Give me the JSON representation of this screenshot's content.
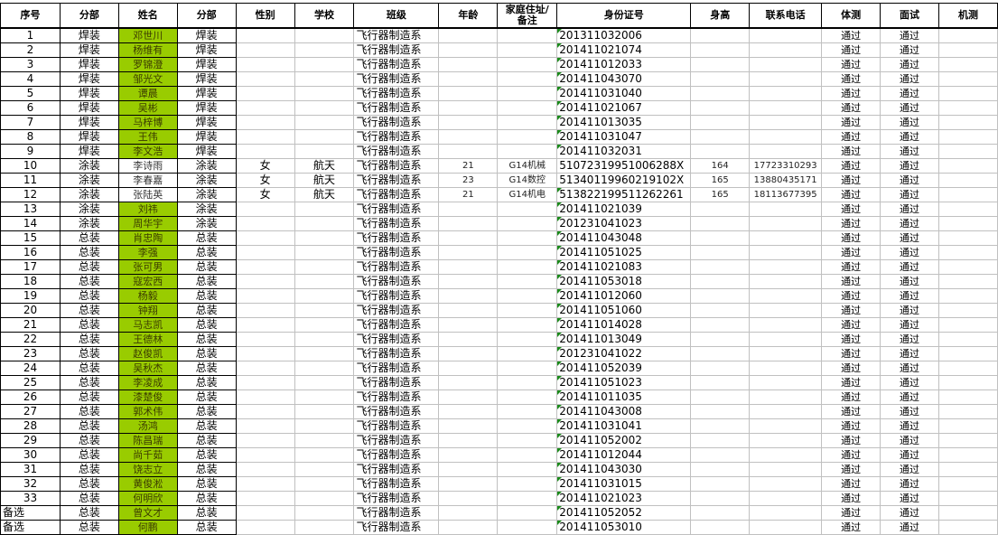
{
  "headers": [
    "序号",
    "分部",
    "姓名",
    "分部",
    "性别",
    "学校",
    "班级",
    "年龄",
    "家庭住址/\n备注",
    "身份证号",
    "身高",
    "联系电话",
    "体测",
    "面试",
    "机测"
  ],
  "colors": {
    "highlight": "#99cc00",
    "grid": "#c0c0c0",
    "border": "#000000",
    "error_indicator": "#1a8a1a"
  },
  "rows": [
    {
      "no": "1",
      "dept": "焊装",
      "name": "邓世川",
      "dept2": "焊装",
      "gender": "",
      "school": "",
      "class": "飞行器制造系",
      "age": "",
      "note": "",
      "id": "201311032006",
      "height": "",
      "phone": "",
      "pe": "通过",
      "interview": "通过",
      "machine": "",
      "hl": true,
      "tri": true
    },
    {
      "no": "2",
      "dept": "焊装",
      "name": "杨维有",
      "dept2": "焊装",
      "gender": "",
      "school": "",
      "class": "飞行器制造系",
      "age": "",
      "note": "",
      "id": "201411021074",
      "height": "",
      "phone": "",
      "pe": "通过",
      "interview": "通过",
      "machine": "",
      "hl": true,
      "tri": true
    },
    {
      "no": "3",
      "dept": "焊装",
      "name": "罗锦澄",
      "dept2": "焊装",
      "gender": "",
      "school": "",
      "class": "飞行器制造系",
      "age": "",
      "note": "",
      "id": "201411012033",
      "height": "",
      "phone": "",
      "pe": "通过",
      "interview": "通过",
      "machine": "",
      "hl": true,
      "tri": true
    },
    {
      "no": "4",
      "dept": "焊装",
      "name": "邹光文",
      "dept2": "焊装",
      "gender": "",
      "school": "",
      "class": "飞行器制造系",
      "age": "",
      "note": "",
      "id": "201411043070",
      "height": "",
      "phone": "",
      "pe": "通过",
      "interview": "通过",
      "machine": "",
      "hl": true,
      "tri": true
    },
    {
      "no": "5",
      "dept": "焊装",
      "name": "谭晨",
      "dept2": "焊装",
      "gender": "",
      "school": "",
      "class": "飞行器制造系",
      "age": "",
      "note": "",
      "id": "201411031040",
      "height": "",
      "phone": "",
      "pe": "通过",
      "interview": "通过",
      "machine": "",
      "hl": true,
      "tri": true
    },
    {
      "no": "6",
      "dept": "焊装",
      "name": "吴彬",
      "dept2": "焊装",
      "gender": "",
      "school": "",
      "class": "飞行器制造系",
      "age": "",
      "note": "",
      "id": "201411021067",
      "height": "",
      "phone": "",
      "pe": "通过",
      "interview": "通过",
      "machine": "",
      "hl": true,
      "tri": true
    },
    {
      "no": "7",
      "dept": "焊装",
      "name": "马梓博",
      "dept2": "焊装",
      "gender": "",
      "school": "",
      "class": "飞行器制造系",
      "age": "",
      "note": "",
      "id": "201411013035",
      "height": "",
      "phone": "",
      "pe": "通过",
      "interview": "通过",
      "machine": "",
      "hl": true,
      "tri": true
    },
    {
      "no": "8",
      "dept": "焊装",
      "name": "王伟",
      "dept2": "焊装",
      "gender": "",
      "school": "",
      "class": "飞行器制造系",
      "age": "",
      "note": "",
      "id": "201411031047",
      "height": "",
      "phone": "",
      "pe": "通过",
      "interview": "通过",
      "machine": "",
      "hl": true,
      "tri": true
    },
    {
      "no": "9",
      "dept": "焊装",
      "name": "李文浩",
      "dept2": "焊装",
      "gender": "",
      "school": "",
      "class": "飞行器制造系",
      "age": "",
      "note": "",
      "id": "201411032031",
      "height": "",
      "phone": "",
      "pe": "通过",
      "interview": "通过",
      "machine": "",
      "hl": true,
      "tri": true
    },
    {
      "no": "10",
      "dept": "涂装",
      "name": "李诗雨",
      "dept2": "涂装",
      "gender": "女",
      "school": "航天",
      "class": "飞行器制造系",
      "age": "21",
      "note": "G14机械",
      "id": "51072319951006288X",
      "height": "164",
      "phone": "17723310293",
      "pe": "通过",
      "interview": "通过",
      "machine": "",
      "hl": false,
      "tri": false
    },
    {
      "no": "11",
      "dept": "涂装",
      "name": "李春嘉",
      "dept2": "涂装",
      "gender": "女",
      "school": "航天",
      "class": "飞行器制造系",
      "age": "23",
      "note": "G14数控",
      "id": "51340119960219102X",
      "height": "165",
      "phone": "13880435171",
      "pe": "通过",
      "interview": "通过",
      "machine": "",
      "hl": false,
      "tri": false
    },
    {
      "no": "12",
      "dept": "涂装",
      "name": "张陆英",
      "dept2": "涂装",
      "gender": "女",
      "school": "航天",
      "class": "飞行器制造系",
      "age": "21",
      "note": "G14机电",
      "id": "513822199511262261",
      "height": "165",
      "phone": "18113677395",
      "pe": "通过",
      "interview": "通过",
      "machine": "",
      "hl": false,
      "tri": true
    },
    {
      "no": "13",
      "dept": "涂装",
      "name": "刘祎",
      "dept2": "涂装",
      "gender": "",
      "school": "",
      "class": "飞行器制造系",
      "age": "",
      "note": "",
      "id": "201411021039",
      "height": "",
      "phone": "",
      "pe": "通过",
      "interview": "通过",
      "machine": "",
      "hl": true,
      "tri": true
    },
    {
      "no": "14",
      "dept": "涂装",
      "name": "周华宇",
      "dept2": "涂装",
      "gender": "",
      "school": "",
      "class": "飞行器制造系",
      "age": "",
      "note": "",
      "id": "201231041023",
      "height": "",
      "phone": "",
      "pe": "通过",
      "interview": "通过",
      "machine": "",
      "hl": true,
      "tri": true
    },
    {
      "no": "15",
      "dept": "总装",
      "name": "肖忠陶",
      "dept2": "总装",
      "gender": "",
      "school": "",
      "class": "飞行器制造系",
      "age": "",
      "note": "",
      "id": "201411043048",
      "height": "",
      "phone": "",
      "pe": "通过",
      "interview": "通过",
      "machine": "",
      "hl": true,
      "tri": true
    },
    {
      "no": "16",
      "dept": "总装",
      "name": "李强",
      "dept2": "总装",
      "gender": "",
      "school": "",
      "class": "飞行器制造系",
      "age": "",
      "note": "",
      "id": "201411051025",
      "height": "",
      "phone": "",
      "pe": "通过",
      "interview": "通过",
      "machine": "",
      "hl": true,
      "tri": true
    },
    {
      "no": "17",
      "dept": "总装",
      "name": "张可男",
      "dept2": "总装",
      "gender": "",
      "school": "",
      "class": "飞行器制造系",
      "age": "",
      "note": "",
      "id": "201411021083",
      "height": "",
      "phone": "",
      "pe": "通过",
      "interview": "通过",
      "machine": "",
      "hl": true,
      "tri": true
    },
    {
      "no": "18",
      "dept": "总装",
      "name": "寇宏西",
      "dept2": "总装",
      "gender": "",
      "school": "",
      "class": "飞行器制造系",
      "age": "",
      "note": "",
      "id": "201411053018",
      "height": "",
      "phone": "",
      "pe": "通过",
      "interview": "通过",
      "machine": "",
      "hl": true,
      "tri": true
    },
    {
      "no": "19",
      "dept": "总装",
      "name": "杨毅",
      "dept2": "总装",
      "gender": "",
      "school": "",
      "class": "飞行器制造系",
      "age": "",
      "note": "",
      "id": "201411012060",
      "height": "",
      "phone": "",
      "pe": "通过",
      "interview": "通过",
      "machine": "",
      "hl": true,
      "tri": true
    },
    {
      "no": "20",
      "dept": "总装",
      "name": "钟翔",
      "dept2": "总装",
      "gender": "",
      "school": "",
      "class": "飞行器制造系",
      "age": "",
      "note": "",
      "id": "201411051060",
      "height": "",
      "phone": "",
      "pe": "通过",
      "interview": "通过",
      "machine": "",
      "hl": true,
      "tri": true
    },
    {
      "no": "21",
      "dept": "总装",
      "name": "马志凯",
      "dept2": "总装",
      "gender": "",
      "school": "",
      "class": "飞行器制造系",
      "age": "",
      "note": "",
      "id": "201411014028",
      "height": "",
      "phone": "",
      "pe": "通过",
      "interview": "通过",
      "machine": "",
      "hl": true,
      "tri": true
    },
    {
      "no": "22",
      "dept": "总装",
      "name": "王德林",
      "dept2": "总装",
      "gender": "",
      "school": "",
      "class": "飞行器制造系",
      "age": "",
      "note": "",
      "id": "201411013049",
      "height": "",
      "phone": "",
      "pe": "通过",
      "interview": "通过",
      "machine": "",
      "hl": true,
      "tri": true
    },
    {
      "no": "23",
      "dept": "总装",
      "name": "赵俊凯",
      "dept2": "总装",
      "gender": "",
      "school": "",
      "class": "飞行器制造系",
      "age": "",
      "note": "",
      "id": "201231041022",
      "height": "",
      "phone": "",
      "pe": "通过",
      "interview": "通过",
      "machine": "",
      "hl": true,
      "tri": true
    },
    {
      "no": "24",
      "dept": "总装",
      "name": "吴秋杰",
      "dept2": "总装",
      "gender": "",
      "school": "",
      "class": "飞行器制造系",
      "age": "",
      "note": "",
      "id": "201411052039",
      "height": "",
      "phone": "",
      "pe": "通过",
      "interview": "通过",
      "machine": "",
      "hl": true,
      "tri": true
    },
    {
      "no": "25",
      "dept": "总装",
      "name": "李凌成",
      "dept2": "总装",
      "gender": "",
      "school": "",
      "class": "飞行器制造系",
      "age": "",
      "note": "",
      "id": "201411051023",
      "height": "",
      "phone": "",
      "pe": "通过",
      "interview": "通过",
      "machine": "",
      "hl": true,
      "tri": true
    },
    {
      "no": "26",
      "dept": "总装",
      "name": "漆楚俊",
      "dept2": "总装",
      "gender": "",
      "school": "",
      "class": "飞行器制造系",
      "age": "",
      "note": "",
      "id": "201411011035",
      "height": "",
      "phone": "",
      "pe": "通过",
      "interview": "通过",
      "machine": "",
      "hl": true,
      "tri": true
    },
    {
      "no": "27",
      "dept": "总装",
      "name": "郭术伟",
      "dept2": "总装",
      "gender": "",
      "school": "",
      "class": "飞行器制造系",
      "age": "",
      "note": "",
      "id": "201411043008",
      "height": "",
      "phone": "",
      "pe": "通过",
      "interview": "通过",
      "machine": "",
      "hl": true,
      "tri": true
    },
    {
      "no": "28",
      "dept": "总装",
      "name": "汤鸿",
      "dept2": "总装",
      "gender": "",
      "school": "",
      "class": "飞行器制造系",
      "age": "",
      "note": "",
      "id": "201411031041",
      "height": "",
      "phone": "",
      "pe": "通过",
      "interview": "通过",
      "machine": "",
      "hl": true,
      "tri": true
    },
    {
      "no": "29",
      "dept": "总装",
      "name": "陈昌瑞",
      "dept2": "总装",
      "gender": "",
      "school": "",
      "class": "飞行器制造系",
      "age": "",
      "note": "",
      "id": "201411052002",
      "height": "",
      "phone": "",
      "pe": "通过",
      "interview": "通过",
      "machine": "",
      "hl": true,
      "tri": true
    },
    {
      "no": "30",
      "dept": "总装",
      "name": "尚千茹",
      "dept2": "总装",
      "gender": "",
      "school": "",
      "class": "飞行器制造系",
      "age": "",
      "note": "",
      "id": "201411012044",
      "height": "",
      "phone": "",
      "pe": "通过",
      "interview": "通过",
      "machine": "",
      "hl": true,
      "tri": true
    },
    {
      "no": "31",
      "dept": "总装",
      "name": "饶志立",
      "dept2": "总装",
      "gender": "",
      "school": "",
      "class": "飞行器制造系",
      "age": "",
      "note": "",
      "id": "201411043030",
      "height": "",
      "phone": "",
      "pe": "通过",
      "interview": "通过",
      "machine": "",
      "hl": true,
      "tri": true
    },
    {
      "no": "32",
      "dept": "总装",
      "name": "黄俊淞",
      "dept2": "总装",
      "gender": "",
      "school": "",
      "class": "飞行器制造系",
      "age": "",
      "note": "",
      "id": "201411031015",
      "height": "",
      "phone": "",
      "pe": "通过",
      "interview": "通过",
      "machine": "",
      "hl": true,
      "tri": true
    },
    {
      "no": "33",
      "dept": "总装",
      "name": "何明欣",
      "dept2": "总装",
      "gender": "",
      "school": "",
      "class": "飞行器制造系",
      "age": "",
      "note": "",
      "id": "201411021023",
      "height": "",
      "phone": "",
      "pe": "通过",
      "interview": "通过",
      "machine": "",
      "hl": true,
      "tri": true
    },
    {
      "no": "备选",
      "dept": "总装",
      "name": "曾文才",
      "dept2": "总装",
      "gender": "",
      "school": "",
      "class": "飞行器制造系",
      "age": "",
      "note": "",
      "id": "201411052052",
      "height": "",
      "phone": "",
      "pe": "通过",
      "interview": "通过",
      "machine": "",
      "hl": true,
      "tri": true
    },
    {
      "no": "备选",
      "dept": "总装",
      "name": "何鹏",
      "dept2": "总装",
      "gender": "",
      "school": "",
      "class": "飞行器制造系",
      "age": "",
      "note": "",
      "id": "201411053010",
      "height": "",
      "phone": "",
      "pe": "通过",
      "interview": "通过",
      "machine": "",
      "hl": true,
      "tri": true
    }
  ]
}
